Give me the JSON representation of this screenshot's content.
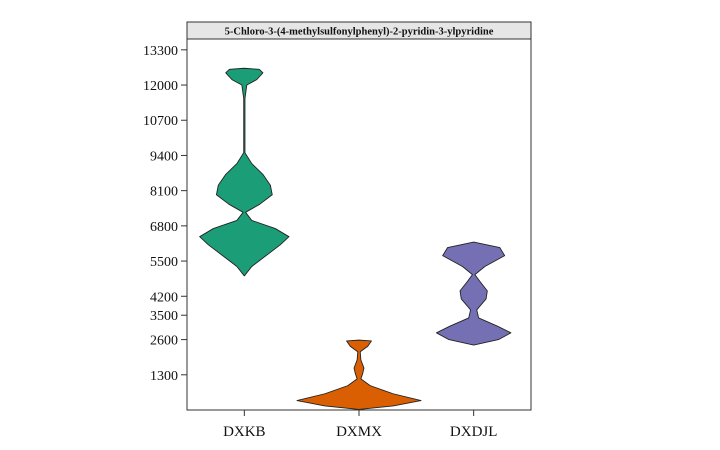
{
  "chart_data": {
    "type": "violin",
    "title": "5-Chloro-3-(4-methylsulfonylphenyl)-2-pyridin-3-ylpyridine",
    "xlabel": "",
    "ylabel": "",
    "yticks": [
      1300,
      2600,
      3500,
      4200,
      5500,
      6800,
      8100,
      9400,
      10700,
      12000,
      13300
    ],
    "ylim": [
      0,
      13700
    ],
    "grid": false,
    "legend": "none",
    "categories": [
      "DXKB",
      "DXMX",
      "DXDJL"
    ],
    "series": [
      {
        "category": "DXKB",
        "color": "#1b9e77",
        "profile": [
          [
            4950,
            0
          ],
          [
            5300,
            0.12
          ],
          [
            5700,
            0.35
          ],
          [
            6100,
            0.58
          ],
          [
            6400,
            0.72
          ],
          [
            6700,
            0.5
          ],
          [
            7000,
            0.12
          ],
          [
            7300,
            0.02
          ],
          [
            7600,
            0.25
          ],
          [
            7950,
            0.45
          ],
          [
            8300,
            0.42
          ],
          [
            8700,
            0.3
          ],
          [
            9100,
            0.12
          ],
          [
            9500,
            0.01
          ],
          [
            10500,
            0.01
          ],
          [
            11500,
            0.01
          ],
          [
            12000,
            0.04
          ],
          [
            12200,
            0.2
          ],
          [
            12450,
            0.3
          ],
          [
            12580,
            0.24
          ],
          [
            12620,
            0
          ]
        ]
      },
      {
        "category": "DXMX",
        "color": "#d95f02",
        "profile": [
          [
            20,
            0
          ],
          [
            150,
            0.55
          ],
          [
            350,
            1.0
          ],
          [
            600,
            0.55
          ],
          [
            900,
            0.18
          ],
          [
            1150,
            0.03
          ],
          [
            1350,
            0.06
          ],
          [
            1550,
            0.08
          ],
          [
            1850,
            0.03
          ],
          [
            2150,
            0.02
          ],
          [
            2350,
            0.14
          ],
          [
            2550,
            0.2
          ],
          [
            2580,
            0
          ]
        ]
      },
      {
        "category": "DXDJL",
        "color": "#7570b3",
        "profile": [
          [
            2400,
            0
          ],
          [
            2600,
            0.4
          ],
          [
            2850,
            0.6
          ],
          [
            3100,
            0.38
          ],
          [
            3400,
            0.08
          ],
          [
            3700,
            0.05
          ],
          [
            4100,
            0.2
          ],
          [
            4400,
            0.22
          ],
          [
            4750,
            0.1
          ],
          [
            5000,
            0.02
          ],
          [
            5300,
            0.18
          ],
          [
            5700,
            0.5
          ],
          [
            6000,
            0.42
          ],
          [
            6200,
            0
          ]
        ]
      }
    ]
  }
}
